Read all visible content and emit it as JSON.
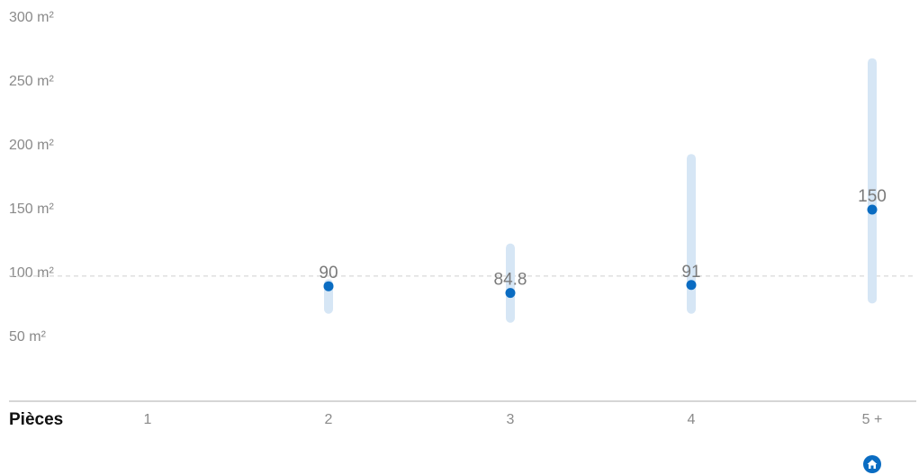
{
  "chart_data": {
    "type": "range-dot",
    "xlabel": "Pièces",
    "categories": [
      "1",
      "2",
      "3",
      "4",
      "5 +"
    ],
    "series": [
      {
        "values": [
          null,
          90,
          84.8,
          91,
          150
        ],
        "range_low": [
          null,
          72,
          65,
          72,
          80
        ],
        "range_high": [
          null,
          92,
          120,
          190,
          265
        ]
      }
    ],
    "value_labels": [
      "",
      "90",
      "84.8",
      "91",
      "150"
    ],
    "y_ticks": [
      "300 m²",
      "250 m²",
      "200 m²",
      "150 m²",
      "100 m²",
      "50 m²"
    ],
    "y_tick_values": [
      300,
      250,
      200,
      150,
      100,
      50
    ],
    "reference_value": 98,
    "ylim": [
      0,
      300
    ],
    "grid": false,
    "colors": {
      "point": "#0a6cc2",
      "range": "#d6e6f5",
      "reference": "#cfcfcf",
      "axis": "#c8c8c8",
      "badge": "#0a6cc2"
    },
    "badge_icon": "house-icon"
  }
}
